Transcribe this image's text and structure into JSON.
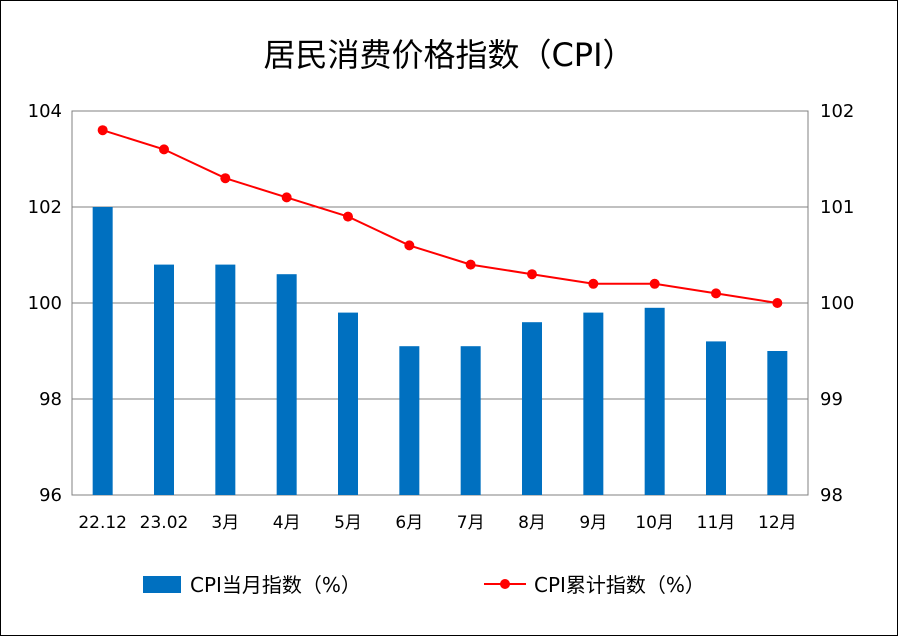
{
  "chart_data": {
    "type": "bar+line",
    "title": "居民消费价格指数（CPI）",
    "categories": [
      "22.12",
      "23.02",
      "3月",
      "4月",
      "5月",
      "6月",
      "7月",
      "8月",
      "9月",
      "10月",
      "11月",
      "12月"
    ],
    "series": [
      {
        "name": "CPI当月指数（%）",
        "type": "bar",
        "axis": "left",
        "color": "#0070C0",
        "values": [
          102.0,
          100.8,
          100.8,
          100.6,
          99.8,
          99.1,
          99.1,
          99.6,
          99.8,
          99.9,
          99.2,
          99.0
        ]
      },
      {
        "name": "CPI累计指数（%）",
        "type": "line",
        "axis": "right",
        "color": "#FF0000",
        "values": [
          101.8,
          101.6,
          101.3,
          101.1,
          100.9,
          100.6,
          100.4,
          100.3,
          100.2,
          100.2,
          100.1,
          100.0
        ]
      }
    ],
    "y_left": {
      "min": 96,
      "max": 104,
      "ticks": [
        96,
        98,
        100,
        102,
        104
      ]
    },
    "y_right": {
      "min": 98,
      "max": 102,
      "ticks": [
        98,
        99,
        100,
        101,
        102
      ]
    },
    "grid": true,
    "legend": "bottom"
  }
}
